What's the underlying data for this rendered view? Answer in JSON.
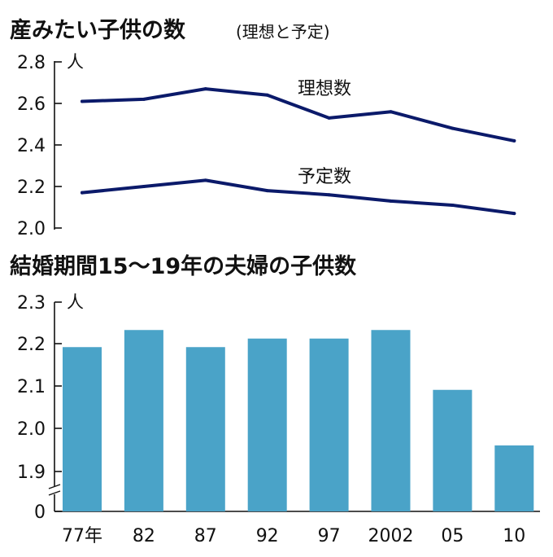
{
  "chart_data": [
    {
      "type": "line",
      "title": "産みたい子供の数",
      "subtitle": "(理想と予定)",
      "unit": "人",
      "x": [
        "77年",
        "82",
        "87",
        "92",
        "97",
        "2002",
        "05",
        "10"
      ],
      "ylim": [
        2.0,
        2.8
      ],
      "yticks": [
        "2.8",
        "2.6",
        "2.4",
        "2.2",
        "2.0"
      ],
      "series": [
        {
          "name": "理想数",
          "values": [
            2.61,
            2.62,
            2.67,
            2.64,
            2.53,
            2.56,
            2.48,
            2.42
          ]
        },
        {
          "name": "予定数",
          "values": [
            2.17,
            2.2,
            2.23,
            2.18,
            2.16,
            2.13,
            2.11,
            2.07
          ]
        }
      ],
      "line_color": "#0b1a6a",
      "grid": false
    },
    {
      "type": "bar",
      "title": "結婚期間15〜19年の夫婦の子供数",
      "unit": "人",
      "categories": [
        "77年",
        "82",
        "87",
        "92",
        "97",
        "2002",
        "05",
        "10"
      ],
      "values": [
        2.19,
        2.23,
        2.19,
        2.21,
        2.21,
        2.23,
        2.09,
        1.96
      ],
      "ylim": [
        1.85,
        2.3
      ],
      "yticks": [
        "2.3",
        "2.2",
        "2.1",
        "2.0",
        "1.9",
        "0"
      ],
      "axis_break": true,
      "bar_color": "#4aa3c8",
      "grid": false
    }
  ]
}
